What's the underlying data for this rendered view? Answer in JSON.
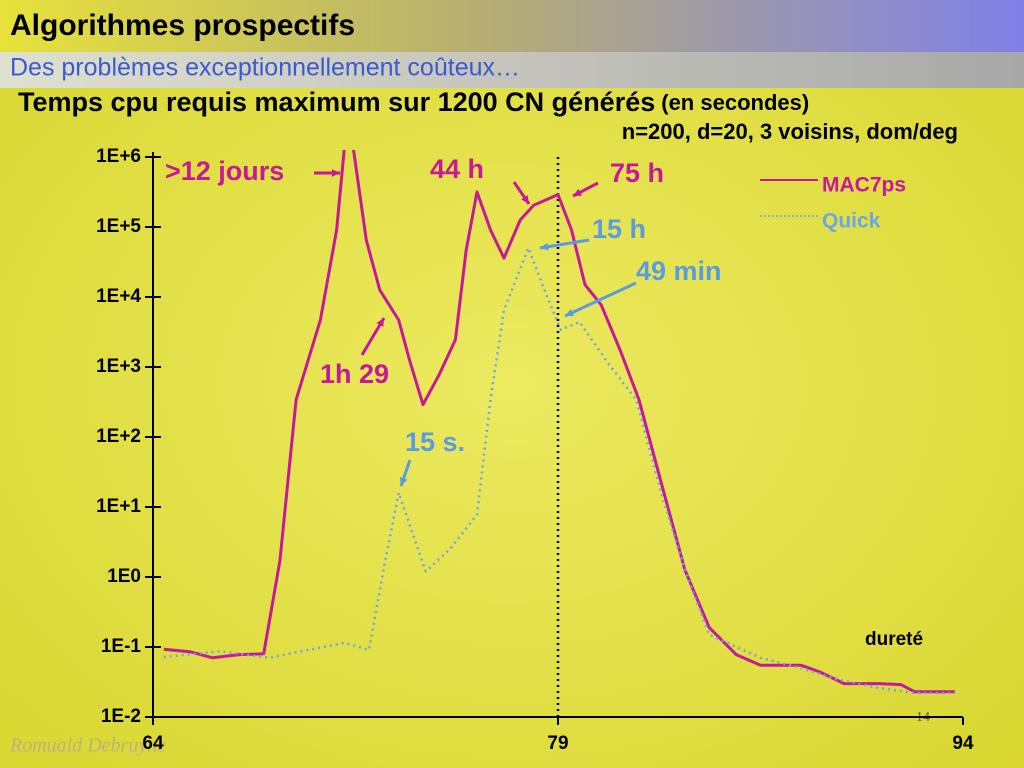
{
  "slide": {
    "title": "Algorithmes prospectifs",
    "subtitle": "Des problèmes exceptionnellement coûteux…",
    "author": "Romuald Debruyne",
    "page_number": "14"
  },
  "chart_data": {
    "type": "line",
    "title": "Temps cpu requis maximum sur 1200 CN générés",
    "title_suffix": "(en secondes)",
    "subtitle": "n=200, d=20, 3 voisins, dom/deg",
    "x_label": "dureté",
    "xlim": [
      64,
      94
    ],
    "xticks": [
      64,
      79,
      94
    ],
    "ylim": [
      0.01,
      1000000
    ],
    "log_y": true,
    "yticks": [
      {
        "value": 1000000,
        "label": "1E+6"
      },
      {
        "value": 100000,
        "label": "1E+5"
      },
      {
        "value": 10000,
        "label": "1E+4"
      },
      {
        "value": 1000,
        "label": "1E+3"
      },
      {
        "value": 100,
        "label": "1E+2"
      },
      {
        "value": 10,
        "label": "1E+1"
      },
      {
        "value": 1,
        "label": "1E0"
      },
      {
        "value": 0.1,
        "label": "1E-1"
      },
      {
        "value": 0.01,
        "label": "1E-2"
      }
    ],
    "legend_position": "top-right",
    "series": [
      {
        "name": "MAC7ps",
        "color": "#c8189a",
        "style": "solid",
        "x": [
          64.4,
          65.4,
          66.2,
          67.2,
          68.1,
          68.7,
          69.3,
          70.2,
          70.8,
          71.1,
          71.4,
          71.9,
          72.4,
          73.1,
          73.5,
          74.0,
          74.6,
          75.2,
          75.6,
          76.0,
          76.5,
          77.0,
          77.6,
          78.1,
          79.0,
          79.5,
          80.0,
          80.6,
          81.3,
          82.0,
          82.8,
          83.7,
          84.6,
          85.6,
          86.5,
          88.0,
          88.7,
          89.6,
          90.9,
          91.7,
          92.2,
          93.7
        ],
        "values": [
          0.093,
          0.085,
          0.07,
          0.078,
          0.08,
          1.7,
          340,
          4700,
          90000,
          1500000,
          1500000,
          65000,
          12600,
          4700,
          1260,
          290,
          780,
          2450,
          47000,
          316000,
          91000,
          36000,
          126000,
          205000,
          290000,
          91000,
          15000,
          7700,
          1750,
          340,
          24,
          1.26,
          0.19,
          0.078,
          0.055,
          0.055,
          0.044,
          0.03,
          0.03,
          0.029,
          0.023,
          0.023
        ]
      },
      {
        "name": "Quick",
        "color": "#6aa6e8",
        "style": "dotted",
        "x": [
          64.4,
          66.5,
          68.3,
          71.1,
          72.0,
          72.6,
          73.1,
          74.1,
          75.0,
          76.0,
          76.5,
          77.0,
          77.9,
          78.5,
          79.1,
          79.8,
          80.9,
          81.9,
          82.8,
          83.7,
          84.6,
          86.5,
          88.0,
          89.4,
          90.9,
          92.2,
          93.7
        ],
        "values": [
          0.072,
          0.087,
          0.07,
          0.115,
          0.091,
          1.7,
          16,
          1.2,
          2.5,
          7.8,
          340,
          6500,
          50000,
          12600,
          3400,
          4400,
          1070,
          340,
          17,
          1.26,
          0.15,
          0.07,
          0.05,
          0.034,
          0.026,
          0.022,
          0.022
        ]
      }
    ],
    "annotations": [
      ">12 jours",
      "44 h",
      "75 h",
      "15 h",
      "49 min",
      "1h 29",
      "15 s."
    ]
  }
}
